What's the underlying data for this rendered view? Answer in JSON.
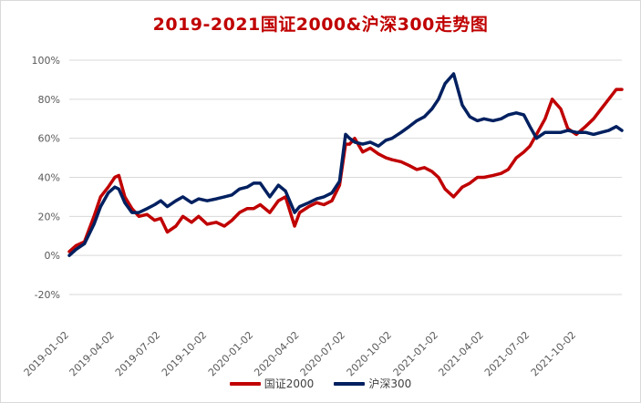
{
  "chart_data": {
    "type": "line",
    "title": "2019-2021国证2000&沪深300走势图",
    "xlabel": "",
    "ylabel": "",
    "ylim": [
      -20,
      100
    ],
    "y_ticks": [
      "-20%",
      "0%",
      "20%",
      "40%",
      "60%",
      "80%",
      "100%"
    ],
    "y_tick_values": [
      -20,
      0,
      20,
      40,
      60,
      80,
      100
    ],
    "x_range": [
      "2019-01-02",
      "2021-12-31"
    ],
    "x_tick_labels": [
      "2019-01-02",
      "2019-04-02",
      "2019-07-02",
      "2019-10-02",
      "2020-01-02",
      "2020-04-02",
      "2020-07-02",
      "2020-10-02",
      "2021-01-02",
      "2021-04-02",
      "2021-07-02",
      "2021-10-02"
    ],
    "grid": "horizontal",
    "legend_position": "bottom",
    "series": [
      {
        "name": "国证2000",
        "color": "#c00000",
        "x": [
          "2019-01-02",
          "2019-01-15",
          "2019-02-01",
          "2019-02-20",
          "2019-03-05",
          "2019-03-20",
          "2019-04-02",
          "2019-04-10",
          "2019-04-22",
          "2019-05-06",
          "2019-05-20",
          "2019-06-05",
          "2019-06-20",
          "2019-07-02",
          "2019-07-15",
          "2019-08-01",
          "2019-08-15",
          "2019-09-01",
          "2019-09-15",
          "2019-10-02",
          "2019-10-20",
          "2019-11-05",
          "2019-11-20",
          "2019-12-05",
          "2019-12-20",
          "2020-01-02",
          "2020-01-15",
          "2020-02-03",
          "2020-02-20",
          "2020-03-05",
          "2020-03-23",
          "2020-04-02",
          "2020-04-20",
          "2020-05-06",
          "2020-05-20",
          "2020-06-05",
          "2020-06-20",
          "2020-07-02",
          "2020-07-10",
          "2020-07-20",
          "2020-08-05",
          "2020-08-20",
          "2020-09-05",
          "2020-09-20",
          "2020-10-02",
          "2020-10-20",
          "2020-11-05",
          "2020-11-20",
          "2020-12-05",
          "2020-12-20",
          "2021-01-02",
          "2021-01-15",
          "2021-02-01",
          "2021-02-18",
          "2021-03-05",
          "2021-03-20",
          "2021-04-02",
          "2021-04-20",
          "2021-05-06",
          "2021-05-20",
          "2021-06-05",
          "2021-06-20",
          "2021-07-02",
          "2021-07-15",
          "2021-08-01",
          "2021-08-15",
          "2021-09-01",
          "2021-09-15",
          "2021-10-02",
          "2021-10-20",
          "2021-11-05",
          "2021-11-20",
          "2021-12-05",
          "2021-12-20",
          "2021-12-31"
        ],
        "values": [
          2,
          5,
          7,
          20,
          30,
          35,
          40,
          41,
          30,
          24,
          20,
          21,
          18,
          19,
          12,
          15,
          20,
          17,
          20,
          16,
          17,
          15,
          18,
          22,
          24,
          24,
          26,
          22,
          28,
          30,
          15,
          22,
          25,
          27,
          26,
          28,
          36,
          57,
          57,
          60,
          53,
          55,
          52,
          50,
          49,
          48,
          46,
          44,
          45,
          43,
          40,
          34,
          30,
          35,
          37,
          40,
          40,
          41,
          42,
          44,
          50,
          53,
          56,
          62,
          70,
          80,
          75,
          65,
          62,
          66,
          70,
          75,
          80,
          85,
          85
        ]
      },
      {
        "name": "沪深300",
        "color": "#002060",
        "x": [
          "2019-01-02",
          "2019-01-15",
          "2019-02-01",
          "2019-02-20",
          "2019-03-05",
          "2019-03-20",
          "2019-04-02",
          "2019-04-10",
          "2019-04-22",
          "2019-05-06",
          "2019-05-20",
          "2019-06-05",
          "2019-06-20",
          "2019-07-02",
          "2019-07-15",
          "2019-08-01",
          "2019-08-15",
          "2019-09-01",
          "2019-09-15",
          "2019-10-02",
          "2019-10-20",
          "2019-11-05",
          "2019-11-20",
          "2019-12-05",
          "2019-12-20",
          "2020-01-02",
          "2020-01-15",
          "2020-02-03",
          "2020-02-20",
          "2020-03-05",
          "2020-03-23",
          "2020-04-02",
          "2020-04-20",
          "2020-05-06",
          "2020-05-20",
          "2020-06-05",
          "2020-06-20",
          "2020-07-02",
          "2020-07-10",
          "2020-07-20",
          "2020-08-05",
          "2020-08-20",
          "2020-09-05",
          "2020-09-20",
          "2020-10-02",
          "2020-10-20",
          "2020-11-05",
          "2020-11-20",
          "2020-12-05",
          "2020-12-20",
          "2021-01-02",
          "2021-01-15",
          "2021-02-01",
          "2021-02-18",
          "2021-03-05",
          "2021-03-20",
          "2021-04-02",
          "2021-04-20",
          "2021-05-06",
          "2021-05-20",
          "2021-06-05",
          "2021-06-20",
          "2021-07-02",
          "2021-07-15",
          "2021-08-01",
          "2021-08-15",
          "2021-09-01",
          "2021-09-15",
          "2021-10-02",
          "2021-10-20",
          "2021-11-05",
          "2021-11-20",
          "2021-12-05",
          "2021-12-20",
          "2021-12-31"
        ],
        "values": [
          0,
          3,
          6,
          16,
          25,
          32,
          35,
          34,
          27,
          22,
          22,
          24,
          26,
          28,
          25,
          28,
          30,
          27,
          29,
          28,
          29,
          30,
          31,
          34,
          35,
          37,
          37,
          30,
          36,
          33,
          22,
          25,
          27,
          29,
          30,
          32,
          38,
          62,
          60,
          58,
          57,
          58,
          56,
          59,
          60,
          63,
          66,
          69,
          71,
          75,
          80,
          88,
          93,
          77,
          71,
          69,
          70,
          69,
          70,
          72,
          73,
          72,
          66,
          60,
          63,
          63,
          63,
          64,
          63,
          63,
          62,
          63,
          64,
          66,
          64
        ]
      }
    ]
  }
}
